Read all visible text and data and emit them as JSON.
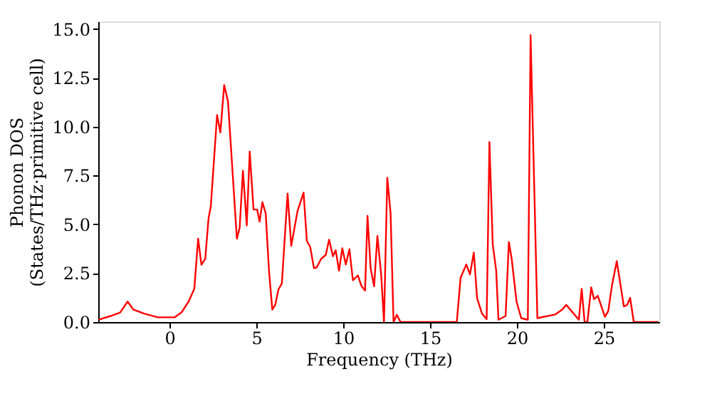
{
  "chart_data": {
    "type": "line",
    "xlabel": "Frequency (THz)",
    "ylabel": "Phonon DOS\n(States/THz·primitive cell)",
    "x": [
      -4.07,
      -3.39,
      -2.84,
      -2.41,
      -2.08,
      -1.49,
      -0.67,
      0.29,
      0.69,
      1.1,
      1.43,
      1.65,
      1.84,
      2.06,
      2.25,
      2.38,
      2.74,
      2.93,
      3.15,
      3.37,
      3.88,
      4.04,
      4.23,
      4.45,
      4.62,
      4.84,
      5.05,
      5.19,
      5.35,
      5.54,
      5.73,
      5.92,
      6.09,
      6.27,
      6.47,
      6.8,
      7.01,
      7.37,
      7.72,
      7.91,
      8.1,
      8.32,
      8.48,
      8.73,
      9.0,
      9.19,
      9.41,
      9.57,
      9.76,
      9.95,
      10.15,
      10.36,
      10.56,
      10.85,
      11.05,
      11.26,
      11.4,
      11.58,
      11.78,
      11.97,
      12.19,
      12.35,
      12.54,
      12.73,
      12.9,
      13.09,
      13.3,
      16.54,
      16.76,
      17.09,
      17.3,
      17.52,
      17.71,
      17.99,
      18.26,
      18.42,
      18.61,
      18.81,
      18.94,
      19.35,
      19.54,
      19.7,
      19.98,
      20.25,
      20.63,
      20.79,
      21.18,
      22.21,
      22.61,
      22.84,
      23.57,
      23.73,
      23.9,
      24.06,
      24.28,
      24.44,
      24.66,
      25.07,
      25.26,
      25.48,
      25.75,
      26.16,
      26.35,
      26.52,
      26.73,
      28.15
    ],
    "series": [
      {
        "color": "#ff0000",
        "values": [
          0.12,
          0.31,
          0.49,
          1.05,
          0.64,
          0.44,
          0.24,
          0.24,
          0.49,
          1.05,
          1.7,
          4.27,
          2.93,
          3.24,
          5.32,
          5.93,
          10.6,
          9.71,
          12.14,
          11.29,
          4.27,
          4.83,
          7.75,
          4.95,
          8.73,
          5.76,
          5.76,
          5.14,
          6.14,
          5.56,
          2.63,
          0.64,
          0.88,
          1.66,
          1.98,
          6.58,
          3.9,
          5.68,
          6.63,
          4.15,
          3.85,
          2.76,
          2.8,
          3.24,
          3.44,
          4.22,
          3.37,
          3.68,
          2.63,
          3.78,
          2.95,
          3.73,
          2.14,
          2.39,
          1.85,
          1.61,
          5.44,
          2.76,
          1.83,
          4.41,
          2.39,
          0,
          7.39,
          5.56,
          0,
          0.37,
          0,
          0,
          2.27,
          2.95,
          2.44,
          3.56,
          1.22,
          0.44,
          0.15,
          9.22,
          3.97,
          2.63,
          0.12,
          0.31,
          4.1,
          3.24,
          1.05,
          0.2,
          0.12,
          14.7,
          0.2,
          0.39,
          0.64,
          0.88,
          0.12,
          1.7,
          0,
          0,
          1.78,
          1.17,
          1.34,
          0.27,
          0.56,
          1.9,
          3.12,
          0.8,
          0.88,
          1.24,
          0,
          0
        ]
      }
    ],
    "xlim": [
      -4.1,
      28.2
    ],
    "ylim": [
      0,
      15.4
    ],
    "xticks": [
      0,
      5,
      10,
      15,
      20,
      25
    ],
    "yticks": [
      {
        "value": 0,
        "label": "0.0"
      },
      {
        "value": 2.5,
        "label": "2.5"
      },
      {
        "value": 5,
        "label": "5.0"
      },
      {
        "value": 7.5,
        "label": "7.5"
      },
      {
        "value": 10,
        "label": "10.0"
      },
      {
        "value": 12.5,
        "label": "12.5"
      },
      {
        "value": 15,
        "label": "15.0"
      }
    ],
    "grid": false,
    "legend": false,
    "line_style": "solid",
    "marker": "none"
  }
}
